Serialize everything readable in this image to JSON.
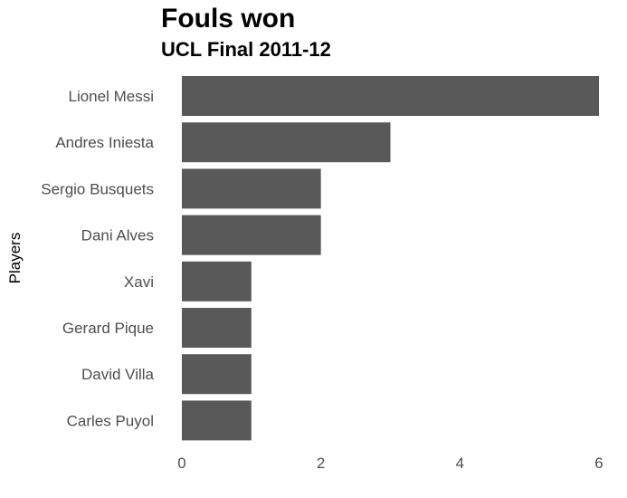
{
  "chart_data": {
    "type": "bar",
    "orientation": "horizontal",
    "title": "Fouls won",
    "subtitle": "UCL Final 2011-12",
    "ylabel": "Players",
    "xlabel": "",
    "categories": [
      "Lionel Messi",
      "Andres Iniesta",
      "Sergio Busquets",
      "Dani Alves",
      "Xavi",
      "Gerard Pique",
      "David Villa",
      "Carles Puyol"
    ],
    "values": [
      6,
      3,
      2,
      2,
      1,
      1,
      1,
      1
    ],
    "xlim": [
      0,
      6
    ],
    "xticks": [
      0,
      2,
      4,
      6
    ],
    "grid": false,
    "bar_color": "#595959",
    "text_color": "#4d4d4d"
  }
}
